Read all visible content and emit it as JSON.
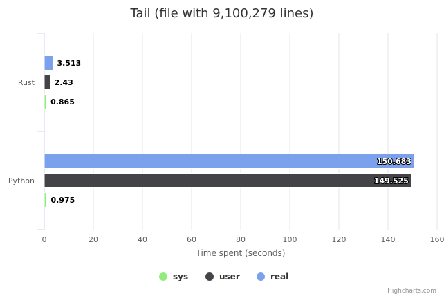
{
  "chart_data": {
    "type": "bar",
    "orientation": "horizontal",
    "title": "Tail (file with 9,100,279 lines)",
    "categories": [
      "Rust",
      "Python"
    ],
    "series": [
      {
        "name": "real",
        "color": "#7CA1EC",
        "values": [
          3.513,
          150.683
        ],
        "labels": [
          "3.513",
          "150.683"
        ]
      },
      {
        "name": "user",
        "color": "#434348",
        "values": [
          2.43,
          149.525
        ],
        "labels": [
          "2.43",
          "149.525"
        ]
      },
      {
        "name": "sys",
        "color": "#90ED7D",
        "values": [
          0.865,
          0.975
        ],
        "labels": [
          "0.865",
          "0.975"
        ]
      }
    ],
    "legend_order": [
      "sys",
      "user",
      "real"
    ],
    "xlabel": "Time spent (seconds)",
    "xlim": [
      0,
      160
    ],
    "xticks": [
      0,
      20,
      40,
      60,
      80,
      100,
      120,
      140,
      160
    ],
    "xtick_labels": [
      "0",
      "20",
      "40",
      "60",
      "80",
      "100",
      "120",
      "140",
      "160"
    ],
    "grid": true,
    "legend_position": "bottom-center"
  },
  "credits": "Highcharts.com"
}
